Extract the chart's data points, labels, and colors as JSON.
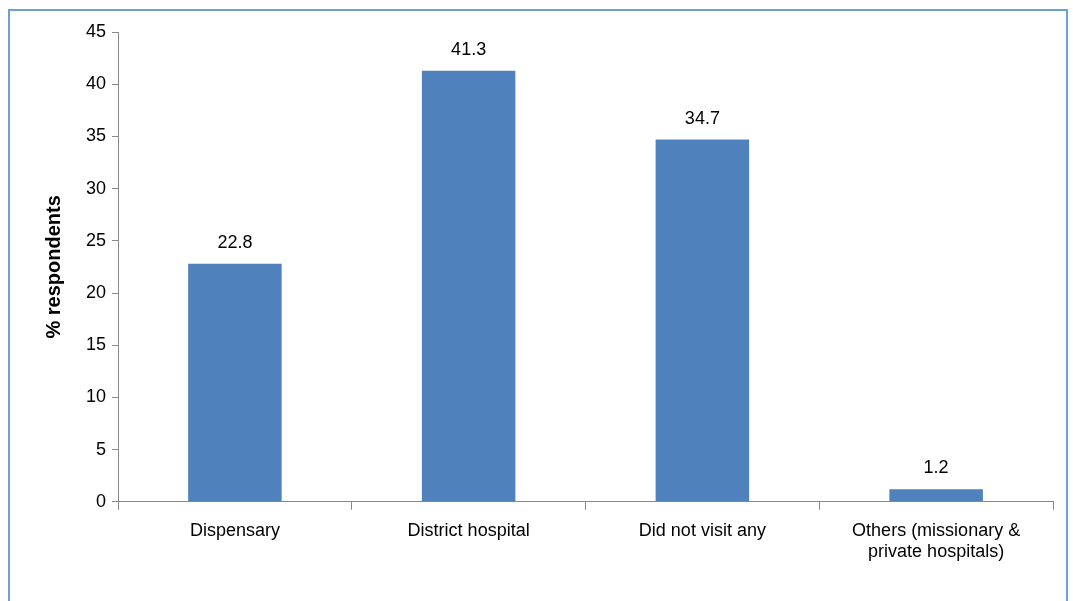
{
  "chart_data": {
    "type": "bar",
    "ylabel": "% respondents",
    "categories": [
      "Dispensary",
      "District hospital",
      "Did not visit any",
      "Others (missionary & private hospitals)"
    ],
    "values": [
      22.8,
      41.3,
      34.7,
      1.2
    ],
    "color": "#4f81bd",
    "ylim": [
      0,
      45
    ],
    "yticks": [
      0,
      5,
      10,
      15,
      20,
      25,
      30,
      35,
      40,
      45
    ],
    "data_labels": true
  }
}
